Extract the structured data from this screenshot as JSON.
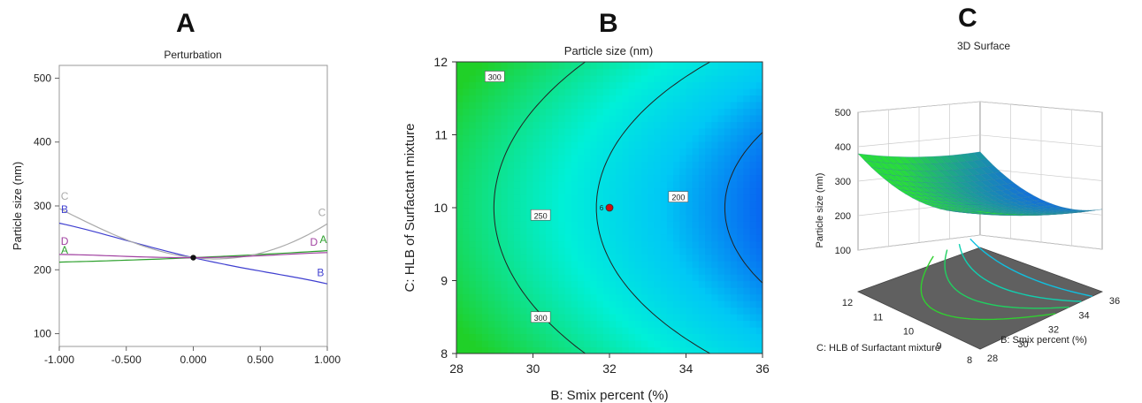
{
  "panel_letters": {
    "a": "A",
    "b": "B",
    "c": "C"
  },
  "chart_data": [
    {
      "type": "line",
      "title": "Perturbation",
      "xlabel": "",
      "ylabel": "Particle size (nm)",
      "xlim": [
        -1.0,
        1.0
      ],
      "ylim": [
        80,
        520
      ],
      "x_ticks": [
        "-1.000",
        "-0.500",
        "0.000",
        "0.500",
        "1.000"
      ],
      "y_ticks": [
        "100",
        "200",
        "300",
        "400",
        "500"
      ],
      "reference_point": {
        "x": 0,
        "y": 219
      },
      "series": [
        {
          "name": "A",
          "color": "#2ca02c",
          "x": [
            -1,
            -0.5,
            0,
            0.5,
            1
          ],
          "y": [
            212,
            215,
            219,
            224,
            230
          ]
        },
        {
          "name": "B",
          "color": "#3f3fd0",
          "x": [
            -1,
            -0.5,
            0,
            0.5,
            1
          ],
          "y": [
            273,
            246,
            219,
            198,
            178
          ]
        },
        {
          "name": "C",
          "color": "#aaaaaa",
          "x": [
            -1,
            -0.5,
            0,
            0.5,
            1
          ],
          "y": [
            296,
            247,
            219,
            226,
            272
          ]
        },
        {
          "name": "D",
          "color": "#a040a0",
          "x": [
            -1,
            -0.5,
            0,
            0.5,
            1
          ],
          "y": [
            224,
            221,
            219,
            222,
            227
          ]
        }
      ],
      "label_positions": [
        {
          "text": "C",
          "color": "#aaaaaa",
          "x": -0.96,
          "y": 310
        },
        {
          "text": "B",
          "color": "#3f3fd0",
          "x": -0.96,
          "y": 289
        },
        {
          "text": "D",
          "color": "#a040a0",
          "x": -0.96,
          "y": 239
        },
        {
          "text": "A",
          "color": "#2ca02c",
          "x": -0.96,
          "y": 225
        },
        {
          "text": "C",
          "color": "#aaaaaa",
          "x": 0.96,
          "y": 284
        },
        {
          "text": "A",
          "color": "#2ca02c",
          "x": 0.97,
          "y": 242
        },
        {
          "text": "D",
          "color": "#a040a0",
          "x": 0.9,
          "y": 238
        },
        {
          "text": "B",
          "color": "#3f3fd0",
          "x": 0.95,
          "y": 190
        }
      ]
    },
    {
      "type": "heatmap",
      "title": "Particle size (nm)",
      "xlabel": "B: Smix percent (%)",
      "ylabel": "C: HLB of Surfactant mixture",
      "xlim": [
        28,
        36
      ],
      "ylim": [
        8,
        12
      ],
      "x_ticks": [
        "28",
        "30",
        "32",
        "34",
        "36"
      ],
      "y_ticks": [
        "8",
        "9",
        "10",
        "11",
        "12"
      ],
      "colormap": [
        "#0a4ff0",
        "#00c8f5",
        "#00f0d8",
        "#10e080",
        "#20d028"
      ],
      "contours": [
        {
          "level": 300,
          "label": "300"
        },
        {
          "level": 250,
          "label": "250"
        },
        {
          "level": 200,
          "label": "200"
        }
      ],
      "contour_labels": [
        {
          "text": "300",
          "x": 29.0,
          "y": 11.8
        },
        {
          "text": "250",
          "x": 30.2,
          "y": 9.9
        },
        {
          "text": "200",
          "x": 33.8,
          "y": 10.15
        },
        {
          "text": "300",
          "x": 30.2,
          "y": 8.5
        }
      ],
      "design_point": {
        "x": 32,
        "y": 10,
        "label": "6"
      }
    },
    {
      "type": "surface",
      "title": "3D Surface",
      "zlabel": "Particle size (nm)",
      "xlabel": "B: Smix percent (%)",
      "ylabel": "C: HLB of Surfactant mixture",
      "x_ticks": [
        "28",
        "30",
        "32",
        "34",
        "36"
      ],
      "y_ticks": [
        "8",
        "9",
        "10",
        "11",
        "12"
      ],
      "z_ticks": [
        "100",
        "200",
        "300",
        "400",
        "500"
      ],
      "zlim": [
        100,
        500
      ]
    }
  ]
}
